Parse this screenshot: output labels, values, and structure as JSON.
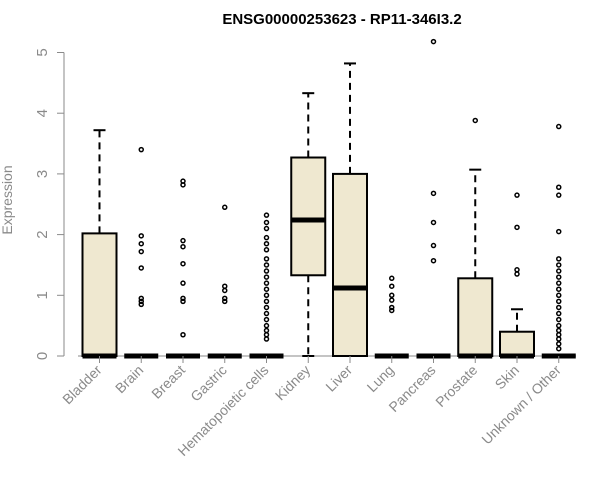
{
  "chart_data": {
    "type": "box",
    "title": "ENSG00000253623 - RP11-346I3.2",
    "ylabel": "Expression",
    "xlabel": "",
    "ylim": [
      0,
      5.2
    ],
    "yticks": [
      0,
      1,
      2,
      3,
      4,
      5
    ],
    "colors": {
      "box_fill": "#efe8d0",
      "stroke": "#000000",
      "axis_text": "#8a8a8a"
    },
    "categories": [
      "Bladder",
      "Brain",
      "Breast",
      "Gastric",
      "Hematopoietic cells",
      "Kidney",
      "Liver",
      "Lung",
      "Pancreas",
      "Prostate",
      "Skin",
      "Unknown / Other"
    ],
    "boxes": [
      {
        "category": "Bladder",
        "min": 0,
        "q1": 0,
        "median": 0,
        "q3": 2.02,
        "max": 3.72,
        "outliers": []
      },
      {
        "category": "Brain",
        "min": 0,
        "q1": 0,
        "median": 0,
        "q3": 0,
        "max": 0,
        "outliers": [
          3.4,
          1.98,
          1.85,
          1.72,
          1.45,
          0.95,
          0.9,
          0.85
        ]
      },
      {
        "category": "Breast",
        "min": 0,
        "q1": 0,
        "median": 0,
        "q3": 0,
        "max": 0,
        "outliers": [
          2.88,
          2.82,
          1.9,
          1.8,
          1.52,
          1.2,
          0.95,
          0.9,
          0.35
        ]
      },
      {
        "category": "Gastric",
        "min": 0,
        "q1": 0,
        "median": 0,
        "q3": 0,
        "max": 0,
        "outliers": [
          2.45,
          1.15,
          1.08,
          0.95,
          0.9
        ]
      },
      {
        "category": "Hematopoietic cells",
        "min": 0,
        "q1": 0,
        "median": 0,
        "q3": 0,
        "max": 0,
        "outliers": [
          2.32,
          2.2,
          2.1,
          1.95,
          1.85,
          1.75,
          1.6,
          1.5,
          1.4,
          1.3,
          1.2,
          1.1,
          1.0,
          0.9,
          0.8,
          0.7,
          0.6,
          0.5,
          0.42,
          0.35,
          0.28
        ]
      },
      {
        "category": "Kidney",
        "min": 0,
        "q1": 1.33,
        "median": 2.24,
        "q3": 3.27,
        "max": 4.33,
        "outliers": []
      },
      {
        "category": "Liver",
        "min": 0,
        "q1": 0,
        "median": 1.12,
        "q3": 3.0,
        "max": 4.82,
        "outliers": []
      },
      {
        "category": "Lung",
        "min": 0,
        "q1": 0,
        "median": 0,
        "q3": 0,
        "max": 0,
        "outliers": [
          1.28,
          1.15,
          1.0,
          0.92,
          0.8,
          0.75
        ]
      },
      {
        "category": "Pancreas",
        "min": 0,
        "q1": 0,
        "median": 0,
        "q3": 0,
        "max": 0,
        "outliers": [
          5.18,
          2.68,
          2.2,
          1.82,
          1.57
        ]
      },
      {
        "category": "Prostate",
        "min": 0,
        "q1": 0,
        "median": 0,
        "q3": 1.28,
        "max": 3.07,
        "outliers": [
          3.88
        ]
      },
      {
        "category": "Skin",
        "min": 0,
        "q1": 0,
        "median": 0,
        "q3": 0.4,
        "max": 0.77,
        "outliers": [
          2.65,
          2.12,
          1.42,
          1.35
        ]
      },
      {
        "category": "Unknown / Other",
        "min": 0,
        "q1": 0,
        "median": 0,
        "q3": 0,
        "max": 0,
        "outliers": [
          3.78,
          2.78,
          2.65,
          2.05,
          1.6,
          1.5,
          1.4,
          1.3,
          1.2,
          1.1,
          1.0,
          0.9,
          0.8,
          0.7,
          0.6,
          0.5,
          0.42,
          0.35,
          0.28,
          0.2,
          0.12
        ]
      }
    ]
  }
}
